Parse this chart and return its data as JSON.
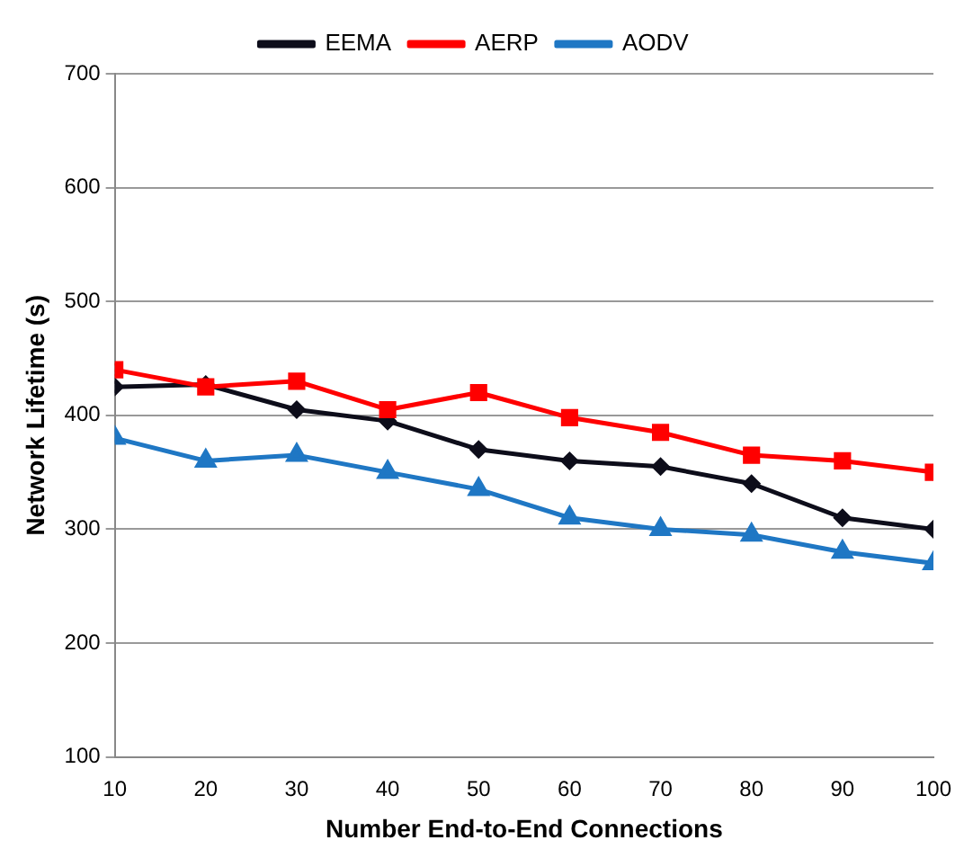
{
  "chart_data": {
    "type": "line",
    "xlabel": "Number End-to-End Connections",
    "ylabel": "Network Lifetime (s)",
    "x": [
      10,
      20,
      30,
      40,
      50,
      60,
      70,
      80,
      90,
      100
    ],
    "series": [
      {
        "name": "EEMA",
        "color": "#0d0d1a",
        "marker": "diamond",
        "values": [
          425,
          427,
          405,
          395,
          370,
          360,
          355,
          340,
          310,
          300
        ]
      },
      {
        "name": "AERP",
        "color": "#ff0000",
        "marker": "square",
        "values": [
          440,
          425,
          430,
          405,
          420,
          398,
          385,
          365,
          360,
          350
        ]
      },
      {
        "name": "AODV",
        "color": "#1f77c4",
        "marker": "triangle",
        "values": [
          380,
          360,
          365,
          350,
          335,
          310,
          300,
          295,
          280,
          270
        ]
      }
    ],
    "xlim": [
      10,
      100
    ],
    "xticks": [
      10,
      20,
      30,
      40,
      50,
      60,
      70,
      80,
      90,
      100
    ],
    "ylim": [
      100,
      700
    ],
    "yticks": [
      100,
      200,
      300,
      400,
      500,
      600,
      700
    ],
    "grid": "y",
    "legend": "top",
    "line_style": "solid"
  }
}
